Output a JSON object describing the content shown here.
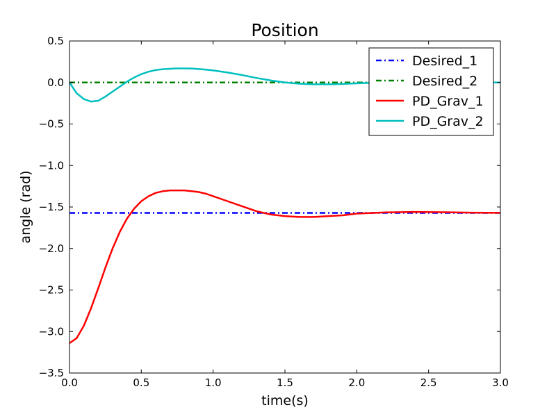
{
  "chart_data": {
    "type": "line",
    "title": "Position",
    "xlabel": "time(s)",
    "ylabel": "angle (rad)",
    "xlim": [
      0.0,
      3.0
    ],
    "ylim": [
      -3.5,
      0.5
    ],
    "xticks": [
      0.0,
      0.5,
      1.0,
      1.5,
      2.0,
      2.5,
      3.0
    ],
    "xtick_labels": [
      "0.0",
      "0.5",
      "1.0",
      "1.5",
      "2.0",
      "2.5",
      "3.0"
    ],
    "yticks": [
      0.5,
      0.0,
      -0.5,
      -1.0,
      -1.5,
      -2.0,
      -2.5,
      -3.0,
      -3.5
    ],
    "ytick_labels": [
      "0.5",
      "0.0",
      "−0.5",
      "−1.0",
      "−1.5",
      "−2.0",
      "−2.5",
      "−3.0",
      "−3.5"
    ],
    "grid": false,
    "legend_position": "top-right",
    "series": [
      {
        "name": "Desired_1",
        "color": "#0000ff",
        "style": "dash-dot",
        "x": [
          0.0,
          3.0
        ],
        "y": [
          -1.5708,
          -1.5708
        ]
      },
      {
        "name": "Desired_2",
        "color": "#008000",
        "style": "dash-dot",
        "x": [
          0.0,
          3.0
        ],
        "y": [
          0.0,
          0.0
        ]
      },
      {
        "name": "PD_Grav_1",
        "color": "#ff0000",
        "style": "solid",
        "x": [
          0.0,
          0.05,
          0.1,
          0.15,
          0.2,
          0.25,
          0.3,
          0.35,
          0.4,
          0.45,
          0.5,
          0.55,
          0.6,
          0.65,
          0.7,
          0.75,
          0.8,
          0.85,
          0.9,
          0.95,
          1.0,
          1.1,
          1.2,
          1.3,
          1.4,
          1.5,
          1.6,
          1.7,
          1.8,
          1.9,
          2.0,
          2.2,
          2.4,
          2.6,
          2.8,
          3.0
        ],
        "y": [
          -3.14,
          -3.08,
          -2.93,
          -2.72,
          -2.48,
          -2.23,
          -2.0,
          -1.8,
          -1.64,
          -1.52,
          -1.43,
          -1.37,
          -1.33,
          -1.31,
          -1.3,
          -1.3,
          -1.3,
          -1.31,
          -1.32,
          -1.34,
          -1.37,
          -1.43,
          -1.49,
          -1.55,
          -1.59,
          -1.61,
          -1.62,
          -1.62,
          -1.61,
          -1.6,
          -1.58,
          -1.565,
          -1.56,
          -1.563,
          -1.568,
          -1.57
        ]
      },
      {
        "name": "PD_Grav_2",
        "color": "#00bfbf",
        "style": "solid",
        "x": [
          0.0,
          0.05,
          0.1,
          0.15,
          0.2,
          0.25,
          0.3,
          0.35,
          0.4,
          0.45,
          0.5,
          0.55,
          0.6,
          0.65,
          0.7,
          0.75,
          0.8,
          0.85,
          0.9,
          0.95,
          1.0,
          1.1,
          1.2,
          1.3,
          1.4,
          1.5,
          1.6,
          1.7,
          1.8,
          1.9,
          2.0,
          2.2,
          2.4,
          2.6,
          2.8,
          3.0
        ],
        "y": [
          0.0,
          -0.13,
          -0.2,
          -0.23,
          -0.22,
          -0.17,
          -0.11,
          -0.05,
          0.01,
          0.06,
          0.1,
          0.13,
          0.15,
          0.16,
          0.165,
          0.17,
          0.17,
          0.168,
          0.162,
          0.155,
          0.145,
          0.12,
          0.09,
          0.055,
          0.025,
          0.0,
          -0.015,
          -0.022,
          -0.022,
          -0.018,
          -0.01,
          0.003,
          0.008,
          0.004,
          0.001,
          0.0
        ]
      }
    ]
  }
}
